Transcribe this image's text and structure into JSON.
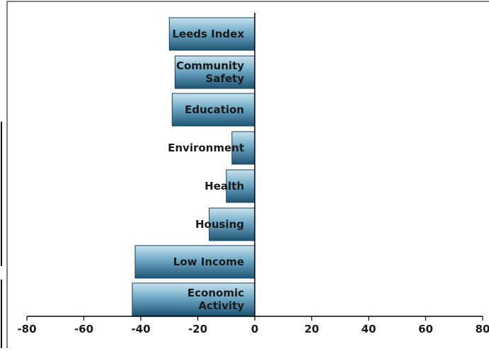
{
  "chart_data": {
    "type": "bar",
    "orientation": "horizontal",
    "title": "",
    "xlabel": "",
    "ylabel": "",
    "categories": [
      "Leeds Index",
      "Community Safety",
      "Education",
      "Environment",
      "Health",
      "Housing",
      "Low Income",
      "Economic Activity"
    ],
    "category_display": [
      [
        "Leeds Index"
      ],
      [
        "Community",
        "Safety"
      ],
      [
        "Education"
      ],
      [
        "Environment"
      ],
      [
        "Health"
      ],
      [
        "Housing"
      ],
      [
        "Low Income"
      ],
      [
        "Economic",
        "Activity"
      ]
    ],
    "values": [
      -30,
      -28,
      -29,
      -8,
      -10,
      -16,
      -42,
      -43
    ],
    "xlim": [
      -80,
      80
    ],
    "xticks": [
      "-80",
      "-60",
      "-40",
      "-20",
      "0",
      "20",
      "40",
      "60",
      "80"
    ],
    "grid": false,
    "legend": "none",
    "colors": {
      "bar_light": "#c9e3ee",
      "bar_mid": "#4b8fb0",
      "bar_dark": "#1f5473",
      "axis": "#000000"
    }
  }
}
